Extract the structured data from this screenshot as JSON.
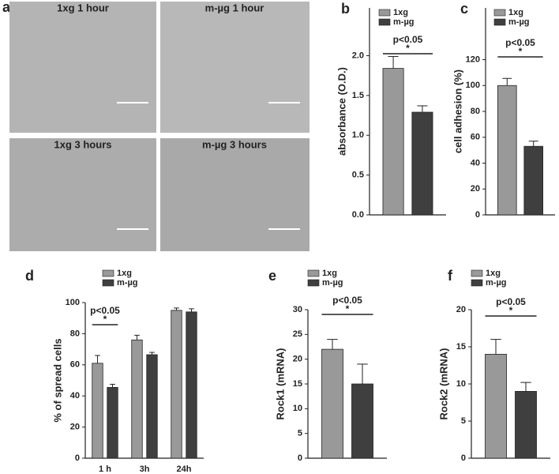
{
  "images": {
    "label": "a",
    "items": [
      {
        "title": "1xg 1 hour"
      },
      {
        "title": "m-µg 1 hour"
      },
      {
        "title": "1xg 3 hours"
      },
      {
        "title": "m-µg 3 hours"
      }
    ]
  },
  "chart_data": [
    {
      "type": "bar",
      "label": "b",
      "ylabel": "absorbance (O.D.)",
      "categories": [
        null
      ],
      "series": [
        {
          "name": "1xg",
          "color": "#999999",
          "values": [
            1.84
          ],
          "errors": [
            0.15
          ]
        },
        {
          "name": "m-µg",
          "color": "#3f3f3f",
          "values": [
            1.29
          ],
          "errors": [
            0.08
          ]
        }
      ],
      "ylim": [
        0,
        2.6
      ],
      "yticks": [
        {
          "value": 0,
          "label": "0.0"
        },
        {
          "value": 0.5,
          "label": "0.5"
        },
        {
          "value": 1,
          "label": "1.0"
        },
        {
          "value": 1.5,
          "label": "1.5"
        },
        {
          "value": 2,
          "label": "2.0"
        }
      ],
      "annotations": [
        "p<0.05",
        "*"
      ]
    },
    {
      "type": "bar",
      "label": "c",
      "ylabel": "cell adhesion (%)",
      "categories": [
        null
      ],
      "series": [
        {
          "name": "1xg",
          "color": "#999999",
          "values": [
            100
          ],
          "errors": [
            5.5
          ]
        },
        {
          "name": "m-µg",
          "color": "#3f3f3f",
          "values": [
            53
          ],
          "errors": [
            4
          ]
        }
      ],
      "ylim": [
        0,
        160
      ],
      "yticks": [
        0,
        20,
        40,
        60,
        80,
        100,
        120
      ],
      "annotations": [
        "p<0.05",
        "*"
      ]
    },
    {
      "type": "bar",
      "label": "d",
      "ylabel": "% of spread cells",
      "categories": [
        "1 h",
        "3h",
        "24h"
      ],
      "series": [
        {
          "name": "1xg",
          "color": "#999999",
          "values": [
            61,
            76,
            95
          ],
          "errors": [
            5,
            3,
            1.5
          ]
        },
        {
          "name": "m-µg",
          "color": "#3f3f3f",
          "values": [
            45.5,
            66.5,
            94
          ],
          "errors": [
            2,
            1.5,
            2
          ]
        }
      ],
      "ylim": [
        0,
        100
      ],
      "yticks": [
        0,
        20,
        40,
        60,
        80,
        100
      ],
      "annotations": [
        "p<0.05",
        "*"
      ]
    },
    {
      "type": "bar",
      "label": "e",
      "ylabel": "Rock1 (mRNA)",
      "categories": [
        null
      ],
      "series": [
        {
          "name": "1xg",
          "color": "#999999",
          "values": [
            22
          ],
          "errors": [
            2
          ]
        },
        {
          "name": "m-µg",
          "color": "#3f3f3f",
          "values": [
            15
          ],
          "errors": [
            4
          ]
        }
      ],
      "ylim": [
        0,
        30
      ],
      "yticks": [
        0,
        5,
        10,
        15,
        20,
        25,
        30
      ],
      "annotations": [
        "p<0.05",
        "*"
      ]
    },
    {
      "type": "bar",
      "label": "f",
      "ylabel": "Rock2 (mRNA)",
      "categories": [
        null
      ],
      "series": [
        {
          "name": "1xg",
          "color": "#999999",
          "values": [
            14
          ],
          "errors": [
            2
          ]
        },
        {
          "name": "m-µg",
          "color": "#3f3f3f",
          "values": [
            9
          ],
          "errors": [
            1.2
          ]
        }
      ],
      "ylim": [
        0,
        20
      ],
      "yticks": [
        0,
        5,
        10,
        15,
        20
      ],
      "annotations": [
        "p<0.05",
        "*"
      ]
    }
  ]
}
